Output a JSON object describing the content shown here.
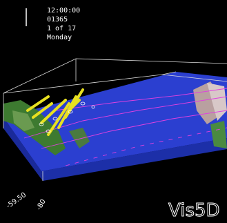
{
  "status": {
    "time": "12:00:00",
    "date": "01365",
    "step": "1 of 17",
    "weekday": "Monday"
  },
  "logo": "Vis5D",
  "axis_labels": [
    "-59.50",
    "-80"
  ]
}
